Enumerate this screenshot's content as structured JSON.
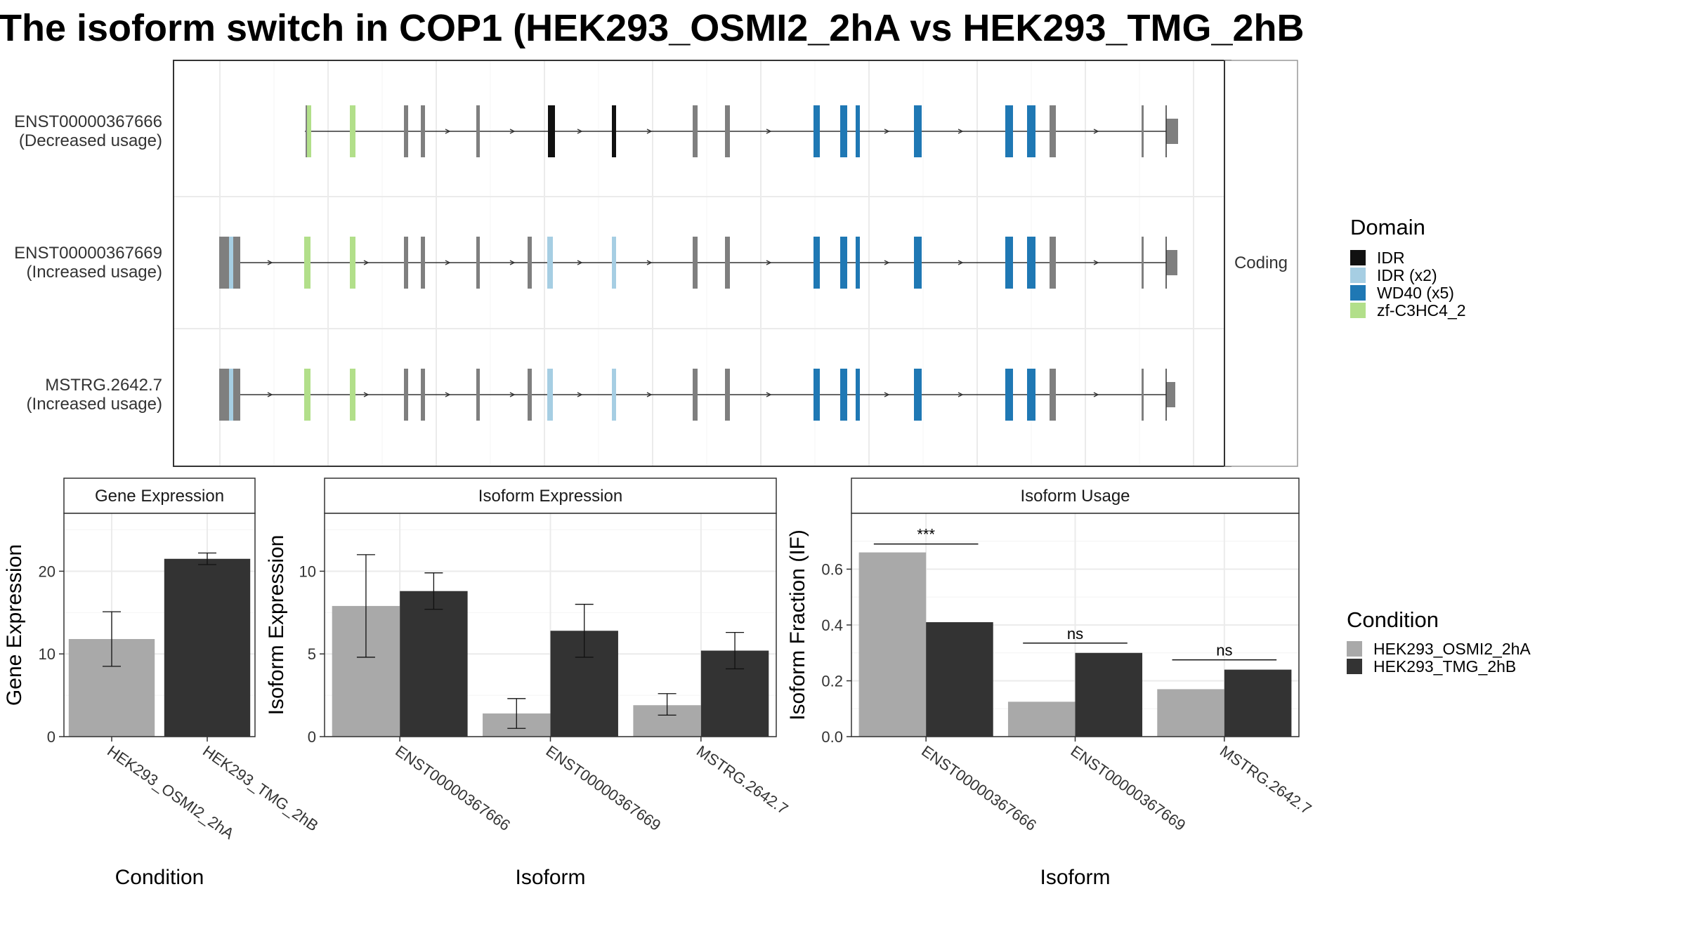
{
  "title": "The isoform switch in COP1 (HEK293_OSMI2_2hA vs HEK293_TMG_2hB",
  "colors": {
    "exon": "#7f7f7f",
    "IDR": "#111111",
    "IDR (x2)": "#a6cee3",
    "WD40 (x5)": "#1f78b4",
    "zf-C3HC4_2": "#b2df8a",
    "cond1": "#a9a9a9",
    "cond2": "#333333"
  },
  "chart_data": [
    {
      "type": "transcript_structure",
      "facet_label": "Coding",
      "transcripts": [
        {
          "name": "ENST00000367666",
          "note": "(Decreased usage)"
        },
        {
          "name": "ENST00000367669",
          "note": "(Increased usage)"
        },
        {
          "name": "MSTRG.2642.7",
          "note": "(Increased usage)"
        }
      ],
      "legend": {
        "title": "Domain",
        "items": [
          "IDR",
          "IDR (x2)",
          "WD40 (x5)",
          "zf-C3HC4_2"
        ]
      }
    },
    {
      "type": "bar",
      "panel": "Gene Expression",
      "xlabel": "Condition",
      "ylabel": "Gene Expression",
      "ylim": [
        0,
        27
      ],
      "yticks": [
        0,
        10,
        20
      ],
      "categories": [
        "HEK293_OSMI2_2hA",
        "HEK293_TMG_2hB"
      ],
      "values": [
        11.8,
        21.5
      ],
      "error": [
        [
          8.5,
          15.1
        ],
        [
          20.8,
          22.2
        ]
      ]
    },
    {
      "type": "bar",
      "panel": "Isoform Expression",
      "xlabel": "Isoform",
      "ylabel": "Isoform Expression",
      "ylim": [
        0,
        13.5
      ],
      "yticks": [
        0,
        5,
        10
      ],
      "categories": [
        "ENST00000367666",
        "ENST00000367669",
        "MSTRG.2642.7"
      ],
      "series": [
        {
          "name": "HEK293_OSMI2_2hA",
          "values": [
            7.9,
            1.4,
            1.9
          ],
          "error": [
            [
              4.8,
              11.0
            ],
            [
              0.5,
              2.3
            ],
            [
              1.3,
              2.6
            ]
          ]
        },
        {
          "name": "HEK293_TMG_2hB",
          "values": [
            8.8,
            6.4,
            5.2
          ],
          "error": [
            [
              7.7,
              9.9
            ],
            [
              4.8,
              8.0
            ],
            [
              4.1,
              6.3
            ]
          ]
        }
      ]
    },
    {
      "type": "bar",
      "panel": "Isoform Usage",
      "xlabel": "Isoform",
      "ylabel": "Isoform Fraction (IF)",
      "ylim": [
        0,
        0.8
      ],
      "yticks": [
        "0.0",
        "0.2",
        "0.4",
        "0.6"
      ],
      "categories": [
        "ENST00000367666",
        "ENST00000367669",
        "MSTRG.2642.7"
      ],
      "series": [
        {
          "name": "HEK293_OSMI2_2hA",
          "values": [
            0.66,
            0.125,
            0.17
          ]
        },
        {
          "name": "HEK293_TMG_2hB",
          "values": [
            0.41,
            0.3,
            0.24
          ]
        }
      ],
      "significance": [
        "***",
        "ns",
        "ns"
      ],
      "significance_level": [
        0.69,
        0.335,
        0.275
      ]
    }
  ],
  "condition_legend": {
    "title": "Condition",
    "items": [
      "HEK293_OSMI2_2hA",
      "HEK293_TMG_2hB"
    ]
  }
}
